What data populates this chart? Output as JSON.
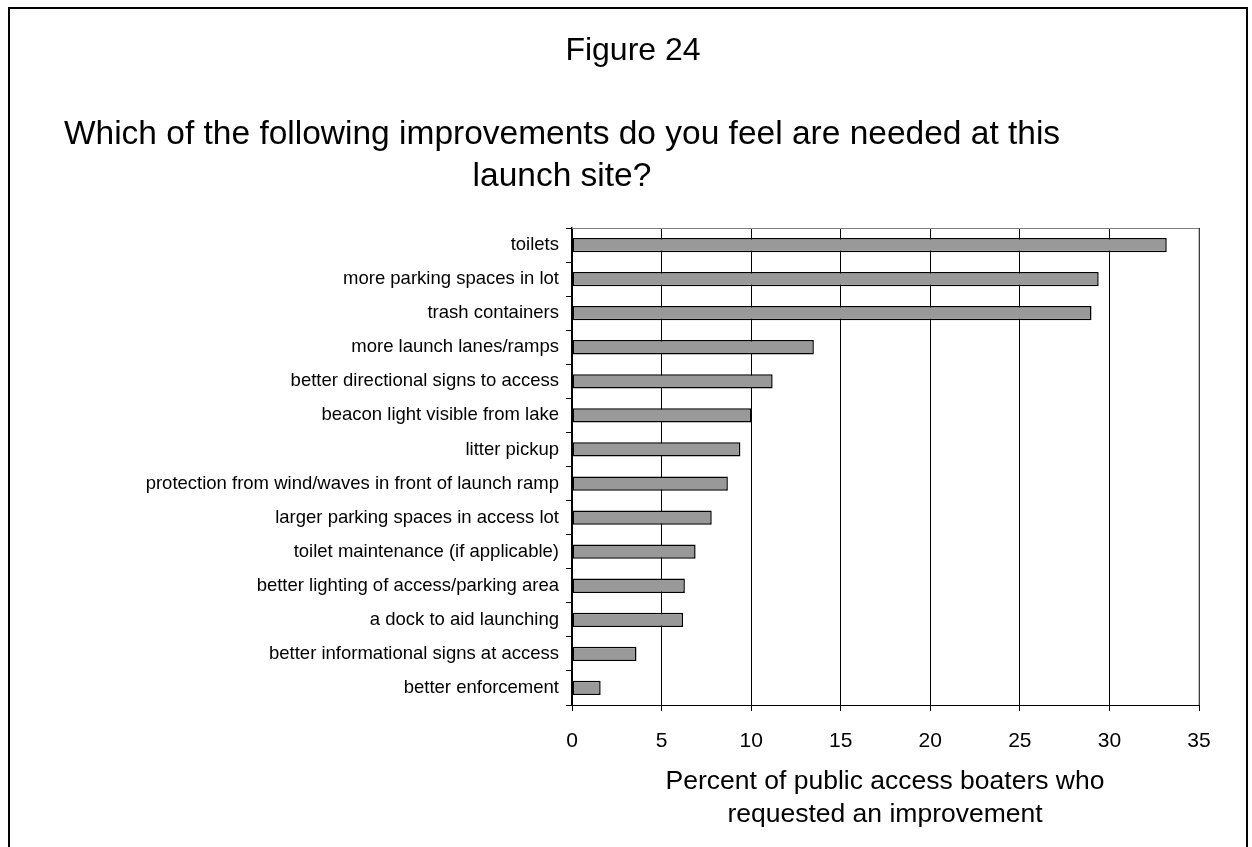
{
  "chart_data": {
    "type": "bar",
    "orientation": "horizontal",
    "title": "Figure 24",
    "subtitle": "Which of the following improvements do you feel are needed at this launch site?",
    "xlabel": "Percent of public access boaters who requested an improvement",
    "categories": [
      "toilets",
      "more parking spaces in lot",
      "trash containers",
      "more launch lanes/ramps",
      "better directional signs to access",
      "beacon light visible from lake",
      "litter pickup",
      "protection from wind/waves in front of launch ramp",
      "larger parking spaces in access lot",
      "toilet maintenance (if applicable)",
      "better lighting of access/parking area",
      "a dock to aid launching",
      "better informational signs at access",
      "better enforcement"
    ],
    "values": [
      33.2,
      29.4,
      29.0,
      13.5,
      11.2,
      10.0,
      9.4,
      8.7,
      7.8,
      6.9,
      6.3,
      6.2,
      3.6,
      1.6
    ],
    "color": "#999999",
    "xlim": [
      0,
      35
    ],
    "xticks": [
      0,
      5,
      10,
      15,
      20,
      25,
      30,
      35
    ],
    "grid": "x"
  }
}
